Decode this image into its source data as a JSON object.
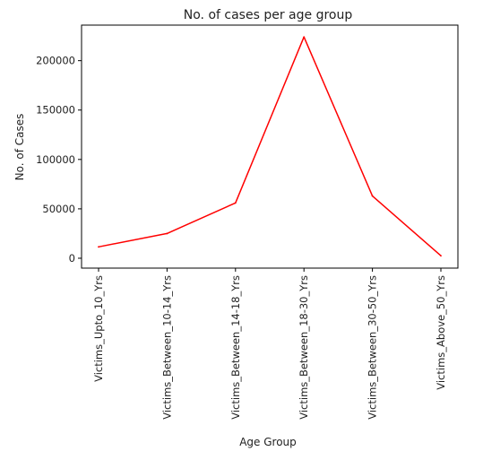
{
  "chart_data": {
    "type": "line",
    "title": "No. of cases per age group",
    "xlabel": "Age Group",
    "ylabel": "No. of Cases",
    "categories": [
      "Victims_Upto_10_Yrs",
      "Victims_Between_10-14_Yrs",
      "Victims_Between_14-18_Yrs",
      "Victims_Between_18-30_Yrs",
      "Victims_Between_30-50_Yrs",
      "Victims_Above_50_Yrs"
    ],
    "series": [
      {
        "color": "#ff0000",
        "values": [
          11500,
          25000,
          56000,
          224000,
          63000,
          2500
        ]
      }
    ],
    "ylim": [
      -10000,
      236000
    ],
    "yticks": [
      0,
      50000,
      100000,
      150000,
      200000
    ],
    "ytick_labels": [
      "0",
      "50000",
      "100000",
      "150000",
      "200000"
    ],
    "grid": false,
    "legend": "none"
  }
}
